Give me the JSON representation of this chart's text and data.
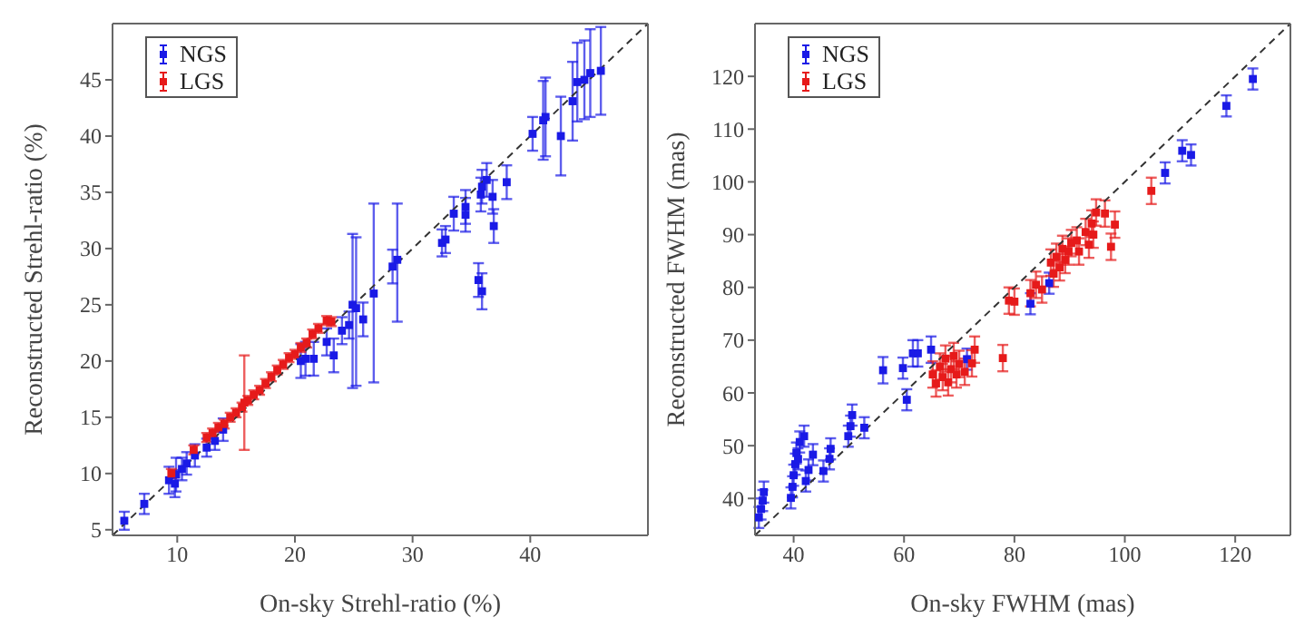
{
  "chart_data": [
    {
      "type": "scatter",
      "xlabel": "On-sky Strehl-ratio (%)",
      "ylabel": "Reconstructed Strehl-ratio (%)",
      "xlim": [
        4.5,
        50
      ],
      "ylim": [
        4.5,
        50
      ],
      "xticks": [
        10,
        20,
        30,
        40
      ],
      "yticks": [
        5,
        10,
        15,
        20,
        25,
        30,
        35,
        40,
        45
      ],
      "grid": false,
      "legend": "top left",
      "marker": "square",
      "series": [
        {
          "name": "NGS",
          "color": "#1a1ae6",
          "x": [
            5.5,
            7.2,
            9.3,
            9.8,
            9.9,
            10.4,
            10.8,
            11.5,
            12.5,
            13.2,
            13.9,
            20.5,
            20.9,
            21.6,
            22.7,
            23.3,
            24,
            24.6,
            24.9,
            25.2,
            25.8,
            26.7,
            28.3,
            28.7,
            32.5,
            32.8,
            33.5,
            34.5,
            34.5,
            35.6,
            35.9,
            35.8,
            35.9,
            36.3,
            36.8,
            36.9,
            38,
            40.2,
            41.1,
            41.3,
            42.6,
            44,
            44.6,
            43.6,
            45.1,
            46
          ],
          "values": [
            5.8,
            7.3,
            9.4,
            9.1,
            9.9,
            10.4,
            10.9,
            11.6,
            12.3,
            12.9,
            13.9,
            20,
            20.2,
            20.2,
            21.7,
            20.5,
            22.7,
            23.2,
            25,
            24.7,
            23.7,
            26,
            28.4,
            29,
            30.5,
            30.8,
            33.1,
            33.7,
            33,
            27.2,
            26.2,
            34.8,
            35.5,
            36.1,
            34.6,
            32,
            35.9,
            40.2,
            41.4,
            41.7,
            40,
            44.8,
            45,
            43.1,
            45.6,
            45.8
          ],
          "errors": [
            0.8,
            0.9,
            1.2,
            1.2,
            1.5,
            1,
            1,
            1,
            0.8,
            0.8,
            1,
            1.5,
            1.5,
            1.5,
            1.2,
            1.5,
            1.2,
            1.2,
            [
              17.6,
              31.3
            ],
            [
              17.8,
              31
            ],
            1.5,
            [
              18.1,
              34
            ],
            1.5,
            [
              23.5,
              34
            ],
            1.2,
            1.2,
            1.5,
            1.5,
            1.5,
            1.5,
            1.6,
            1.5,
            1.5,
            1.5,
            1.5,
            1.5,
            1.5,
            1.5,
            3.5,
            3.5,
            3.5,
            3.5,
            3.5,
            3.5,
            3.9,
            3.9
          ]
        },
        {
          "name": "LGS",
          "color": "#e61a1a",
          "x": [
            9.5,
            11.4,
            12.5,
            13,
            13.5,
            14,
            14.5,
            15,
            15.5,
            15.7,
            16,
            16.5,
            17,
            17.5,
            18,
            18.5,
            19,
            19.5,
            20,
            20.5,
            21,
            21.5,
            22,
            22.7,
            23.1
          ],
          "values": [
            10,
            12.1,
            13.2,
            13.6,
            14.1,
            14.4,
            15,
            15.4,
            15.9,
            16.3,
            16.5,
            17,
            17.4,
            18,
            18.6,
            19.2,
            19.7,
            20.3,
            20.6,
            21.2,
            21.6,
            22.4,
            22.9,
            23.6,
            23.5
          ],
          "errors": [
            0.4,
            0.4,
            0.4,
            0.4,
            0.4,
            0.4,
            0.4,
            0.4,
            0.4,
            [
              12.1,
              20.5
            ],
            0.4,
            0.4,
            0.4,
            0.4,
            0.4,
            0.4,
            0.4,
            0.4,
            0.4,
            0.4,
            0.4,
            0.4,
            0.4,
            0.4,
            0.4
          ]
        },
        {
          "type": "line",
          "color": "#333333",
          "line_style": "dashed",
          "marker": "none",
          "x": [
            4.5,
            50
          ],
          "values": [
            4.5,
            50
          ]
        }
      ]
    },
    {
      "type": "scatter",
      "xlabel": "On-sky FWHM (mas)",
      "ylabel": "Reconstructed FWHM (mas)",
      "xlim": [
        33,
        130
      ],
      "ylim": [
        33,
        130
      ],
      "xticks": [
        40,
        60,
        80,
        100,
        120
      ],
      "yticks": [
        40,
        50,
        60,
        70,
        80,
        90,
        100,
        110,
        120
      ],
      "grid": false,
      "legend": "top left",
      "marker": "square",
      "series": [
        {
          "name": "NGS",
          "color": "#1a1ae6",
          "x": [
            33.7,
            34.1,
            34.4,
            34.6,
            39.5,
            39.8,
            40,
            40.3,
            40.5,
            40.8,
            41.1,
            41.9,
            42.2,
            42.7,
            43.5,
            45.4,
            46.5,
            46.7,
            49.9,
            50.3,
            50.6,
            52.8,
            56.2,
            59.8,
            60.5,
            61.6,
            62.5,
            64.9,
            65.6,
            71.4,
            82.9,
            86.3,
            107.3,
            110.4,
            112,
            118.4,
            123.2
          ],
          "values": [
            36.4,
            38,
            39.6,
            41.2,
            40.1,
            42.2,
            44.4,
            46.5,
            48.6,
            47.5,
            50.7,
            51.8,
            43.3,
            45.4,
            48.3,
            45.2,
            47.5,
            49.4,
            51.8,
            53.7,
            55.8,
            53.4,
            64.3,
            64.7,
            58.7,
            67.5,
            67.5,
            68.2,
            null,
            66.4,
            76.9,
            80.8,
            101.7,
            105.9,
            105.1,
            114.4,
            119.5
          ],
          "errors": [
            2,
            2,
            2,
            2,
            2,
            2,
            2,
            2,
            2,
            2,
            2,
            2,
            2,
            2,
            2,
            2,
            2,
            2,
            2,
            2,
            2,
            2,
            2.5,
            2,
            2,
            2.5,
            2.5,
            2.5,
            null,
            2,
            2,
            2,
            2,
            2,
            2,
            2,
            2
          ]
        },
        {
          "name": "LGS",
          "color": "#e61a1a",
          "x": [
            65.2,
            65.8,
            66.5,
            67,
            67.5,
            68,
            68.5,
            69,
            69.5,
            70,
            71,
            72.3,
            72.8,
            77.9,
            79,
            80,
            82.9,
            83.9,
            85,
            86.6,
            87.1,
            87.6,
            88.2,
            88.7,
            89.2,
            89.8,
            90.3,
            91.3,
            91.7,
            92.9,
            93.5,
            94,
            94.3,
            94.8,
            96.4,
            97.5,
            98.2,
            104.8
          ],
          "values": [
            63.5,
            61.8,
            65,
            63,
            66.5,
            62,
            64.5,
            67,
            63.5,
            65.5,
            64,
            65.6,
            68.2,
            66.6,
            77.5,
            77.3,
            78.9,
            80.5,
            79.6,
            84.7,
            82.6,
            85.8,
            83.8,
            87.3,
            85.2,
            86.8,
            88.4,
            88.9,
            86.8,
            90.5,
            88.1,
            92.1,
            90,
            94.2,
            94,
            87.7,
            91.9,
            98.3
          ],
          "errors": [
            2.5,
            2.5,
            2.5,
            2.5,
            2.5,
            2.5,
            2.5,
            2.5,
            2.5,
            2.5,
            2.5,
            2.5,
            2.5,
            2.5,
            2.5,
            2.5,
            2.5,
            2.5,
            2.5,
            2.5,
            2.5,
            2.5,
            2.5,
            2.5,
            2.5,
            2.5,
            2.5,
            2.5,
            2.5,
            2.5,
            2.5,
            2.5,
            2.5,
            2.5,
            2.5,
            2.5,
            2.5,
            2.5
          ]
        },
        {
          "type": "line",
          "color": "#333333",
          "line_style": "dashed",
          "marker": "none",
          "x": [
            33,
            130
          ],
          "values": [
            33,
            130
          ]
        }
      ]
    }
  ]
}
